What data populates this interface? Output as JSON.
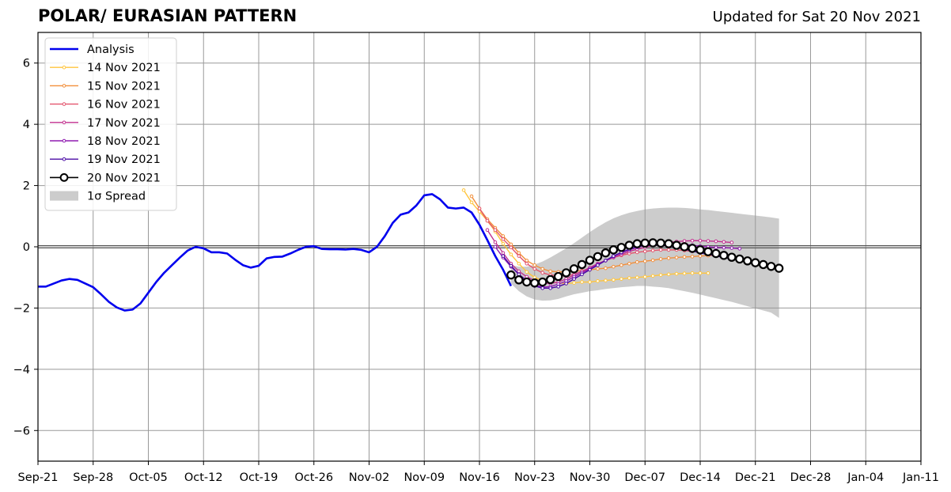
{
  "header": {
    "title": "POLAR/ EURASIAN  PATTERN",
    "updated": "Updated for Sat 20 Nov 2021"
  },
  "chart_data": {
    "type": "line",
    "title": "POLAR/ EURASIAN  PATTERN",
    "subtitle": "Updated for Sat 20 Nov 2021",
    "xlabel": "",
    "ylabel": "",
    "x_axis": {
      "type": "date",
      "min": "2021-09-21",
      "max": "2022-01-11"
    },
    "xticks": [
      {
        "date": "2021-09-21",
        "label": "Sep-21"
      },
      {
        "date": "2021-09-28",
        "label": "Sep-28"
      },
      {
        "date": "2021-10-05",
        "label": "Oct-05"
      },
      {
        "date": "2021-10-12",
        "label": "Oct-12"
      },
      {
        "date": "2021-10-19",
        "label": "Oct-19"
      },
      {
        "date": "2021-10-26",
        "label": "Oct-26"
      },
      {
        "date": "2021-11-02",
        "label": "Nov-02"
      },
      {
        "date": "2021-11-09",
        "label": "Nov-09"
      },
      {
        "date": "2021-11-16",
        "label": "Nov-16"
      },
      {
        "date": "2021-11-23",
        "label": "Nov-23"
      },
      {
        "date": "2021-11-30",
        "label": "Nov-30"
      },
      {
        "date": "2021-12-07",
        "label": "Dec-07"
      },
      {
        "date": "2021-12-14",
        "label": "Dec-14"
      },
      {
        "date": "2021-12-21",
        "label": "Dec-21"
      },
      {
        "date": "2021-12-28",
        "label": "Dec-28"
      },
      {
        "date": "2022-01-04",
        "label": "Jan-04"
      },
      {
        "date": "2022-01-11",
        "label": "Jan-11"
      }
    ],
    "ylim": [
      -7,
      7
    ],
    "yticks": [
      -6,
      -4,
      -2,
      0,
      2,
      4,
      6
    ],
    "ytick_labels": [
      "−6",
      "−4",
      "−2",
      "0",
      "2",
      "4",
      "6"
    ],
    "grid": true,
    "zero_line": true,
    "legend_placement": "upper-left",
    "colors": {
      "analysis": "#0000ee",
      "spread": "#cccccc",
      "grid": "#999999",
      "final": "#000000"
    },
    "analysis": {
      "name": "Analysis",
      "color": "#0000ee",
      "start": "2021-09-21",
      "values": [
        -1.3,
        -1.3,
        -1.2,
        -1.1,
        -1.05,
        -1.08,
        -1.2,
        -1.32,
        -1.55,
        -1.8,
        -1.98,
        -2.08,
        -2.05,
        -1.85,
        -1.5,
        -1.15,
        -0.85,
        -0.6,
        -0.35,
        -0.12,
        0.0,
        -0.05,
        -0.18,
        -0.18,
        -0.22,
        -0.42,
        -0.6,
        -0.68,
        -0.62,
        -0.38,
        -0.33,
        -0.32,
        -0.22,
        -0.1,
        0.0,
        0.02,
        -0.07,
        -0.08,
        -0.08,
        -0.09,
        -0.07,
        -0.1,
        -0.18,
        0.0,
        0.35,
        0.78,
        1.05,
        1.12,
        1.35,
        1.68,
        1.72,
        1.55,
        1.28,
        1.25,
        1.28,
        1.12,
        0.72,
        0.22,
        -0.3,
        -0.75,
        -1.28
      ]
    },
    "series": [
      {
        "name": "14 Nov 2021",
        "color": "#ffc53d",
        "start": "2021-11-14",
        "values": [
          1.85,
          1.45,
          1.15,
          0.85,
          0.5,
          0.1,
          -0.25,
          -0.55,
          -0.82,
          -1.0,
          -1.1,
          -1.15,
          -1.18,
          -1.2,
          -1.18,
          -1.15,
          -1.15,
          -1.12,
          -1.1,
          -1.08,
          -1.05,
          -1.02,
          -1.0,
          -0.98,
          -0.95,
          -0.92,
          -0.9,
          -0.88,
          -0.87,
          -0.86,
          -0.86,
          -0.86
        ]
      },
      {
        "name": "15 Nov 2021",
        "color": "#f28f3b",
        "start": "2021-11-15",
        "values": [
          1.65,
          1.25,
          0.9,
          0.62,
          0.35,
          0.08,
          -0.2,
          -0.45,
          -0.6,
          -0.72,
          -0.8,
          -0.82,
          -0.82,
          -0.8,
          -0.78,
          -0.75,
          -0.72,
          -0.7,
          -0.65,
          -0.6,
          -0.55,
          -0.5,
          -0.47,
          -0.44,
          -0.4,
          -0.37,
          -0.35,
          -0.33,
          -0.32,
          -0.3,
          -0.29,
          -0.28
        ]
      },
      {
        "name": "16 Nov 2021",
        "color": "#e3546d",
        "start": "2021-11-16",
        "values": [
          1.25,
          0.85,
          0.55,
          0.25,
          -0.02,
          -0.3,
          -0.55,
          -0.72,
          -0.85,
          -0.92,
          -0.95,
          -0.95,
          -0.9,
          -0.8,
          -0.68,
          -0.55,
          -0.45,
          -0.35,
          -0.28,
          -0.22,
          -0.18,
          -0.15,
          -0.12,
          -0.1,
          -0.1,
          -0.1,
          -0.12,
          -0.15,
          -0.18,
          -0.2,
          -0.22,
          -0.23
        ]
      },
      {
        "name": "17 Nov 2021",
        "color": "#c2308f",
        "start": "2021-11-17",
        "values": [
          0.55,
          0.15,
          -0.2,
          -0.55,
          -0.8,
          -0.98,
          -1.1,
          -1.18,
          -1.2,
          -1.15,
          -1.05,
          -0.92,
          -0.8,
          -0.68,
          -0.55,
          -0.45,
          -0.35,
          -0.25,
          -0.15,
          -0.08,
          -0.02,
          0.05,
          0.1,
          0.14,
          0.17,
          0.19,
          0.2,
          0.2,
          0.19,
          0.18,
          0.16,
          0.14
        ]
      },
      {
        "name": "18 Nov 2021",
        "color": "#8f1bb0",
        "start": "2021-11-18",
        "values": [
          0.0,
          -0.35,
          -0.65,
          -0.9,
          -1.1,
          -1.25,
          -1.32,
          -1.3,
          -1.22,
          -1.12,
          -0.98,
          -0.85,
          -0.72,
          -0.58,
          -0.45,
          -0.32,
          -0.2,
          -0.1,
          -0.02,
          0.05,
          0.1,
          0.12,
          0.12,
          0.1,
          0.08,
          0.05,
          0.02,
          0.0,
          -0.02,
          -0.03,
          -0.04,
          -0.06
        ]
      },
      {
        "name": "19 Nov 2021",
        "color": "#4b0ca6",
        "start": "2021-11-19",
        "values": [
          -0.3,
          -0.62,
          -0.9,
          -1.12,
          -1.28,
          -1.35,
          -1.35,
          -1.3,
          -1.2,
          -1.05,
          -0.9,
          -0.75,
          -0.6,
          -0.45,
          -0.3,
          -0.18,
          -0.08,
          0.0,
          0.05,
          0.06,
          0.05,
          0.02,
          -0.02,
          -0.08,
          -0.14,
          -0.2,
          -0.25,
          -0.3,
          -0.35,
          -0.4,
          -0.45,
          -0.5
        ]
      },
      {
        "name": "20 Nov 2021",
        "color": "#000000",
        "start": "2021-11-20",
        "values": [
          -0.92,
          -1.08,
          -1.15,
          -1.18,
          -1.15,
          -1.07,
          -0.97,
          -0.85,
          -0.72,
          -0.58,
          -0.44,
          -0.32,
          -0.2,
          -0.1,
          -0.02,
          0.05,
          0.1,
          0.12,
          0.13,
          0.12,
          0.1,
          0.05,
          0.0,
          -0.05,
          -0.1,
          -0.16,
          -0.22,
          -0.28,
          -0.34,
          -0.4,
          -0.46,
          -0.52,
          -0.58,
          -0.64,
          -0.7
        ]
      }
    ],
    "spread": {
      "name": "1σ Spread",
      "color": "#cccccc",
      "start": "2021-11-20",
      "upper": [
        -0.6,
        -0.65,
        -0.65,
        -0.58,
        -0.48,
        -0.35,
        -0.2,
        -0.05,
        0.12,
        0.3,
        0.48,
        0.65,
        0.8,
        0.93,
        1.03,
        1.11,
        1.17,
        1.22,
        1.25,
        1.27,
        1.28,
        1.28,
        1.27,
        1.25,
        1.22,
        1.2,
        1.17,
        1.14,
        1.11,
        1.08,
        1.05,
        1.02,
        0.99,
        0.96,
        0.92
      ],
      "lower": [
        -1.2,
        -1.45,
        -1.62,
        -1.72,
        -1.76,
        -1.75,
        -1.7,
        -1.62,
        -1.55,
        -1.5,
        -1.45,
        -1.42,
        -1.38,
        -1.35,
        -1.32,
        -1.3,
        -1.28,
        -1.28,
        -1.3,
        -1.32,
        -1.35,
        -1.4,
        -1.45,
        -1.5,
        -1.56,
        -1.62,
        -1.68,
        -1.74,
        -1.8,
        -1.87,
        -1.94,
        -2.01,
        -2.08,
        -2.15,
        -2.32
      ]
    },
    "legend": [
      {
        "label": "Analysis",
        "key": "analysis"
      },
      {
        "label": "14 Nov 2021",
        "key": "s0"
      },
      {
        "label": "15 Nov 2021",
        "key": "s1"
      },
      {
        "label": "16 Nov 2021",
        "key": "s2"
      },
      {
        "label": "17 Nov 2021",
        "key": "s3"
      },
      {
        "label": "18 Nov 2021",
        "key": "s4"
      },
      {
        "label": "19 Nov 2021",
        "key": "s5"
      },
      {
        "label": "20 Nov 2021",
        "key": "s6"
      },
      {
        "label": "1σ Spread",
        "key": "spread"
      }
    ]
  }
}
